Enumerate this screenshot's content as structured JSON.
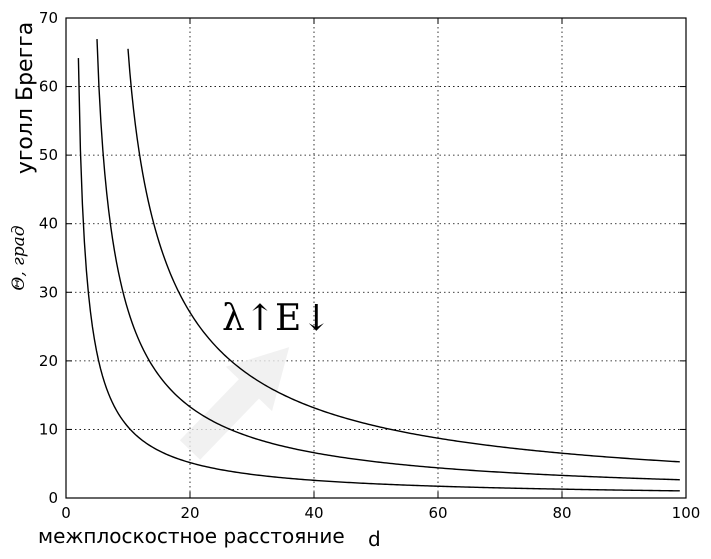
{
  "chart_data": {
    "type": "line",
    "title": "",
    "ylabel": "уголл Брегга",
    "ylabel_secondary": "Θ, град",
    "xlabel": "межплоскостное расстояние",
    "xlabel_secondary": "d",
    "xlim": [
      0,
      100
    ],
    "ylim": [
      0,
      70
    ],
    "x_ticks": [
      0,
      20,
      40,
      60,
      80,
      100
    ],
    "y_ticks": [
      0,
      10,
      20,
      30,
      40,
      50,
      60,
      70
    ],
    "grid": true,
    "grid_style": "dotted",
    "line_color": "#000000",
    "annotation": {
      "text": "λ↑E↓",
      "arrow_color": "#eeeeee",
      "arrow_from": [
        20,
        7
      ],
      "arrow_to": [
        36,
        22
      ]
    },
    "series": [
      {
        "x_start": 2,
        "x_end": 99,
        "k": 1.8
      },
      {
        "x_start": 5,
        "x_end": 99,
        "k": 4.6
      },
      {
        "x_start": 10,
        "x_end": 99,
        "k": 9.1
      }
    ]
  }
}
